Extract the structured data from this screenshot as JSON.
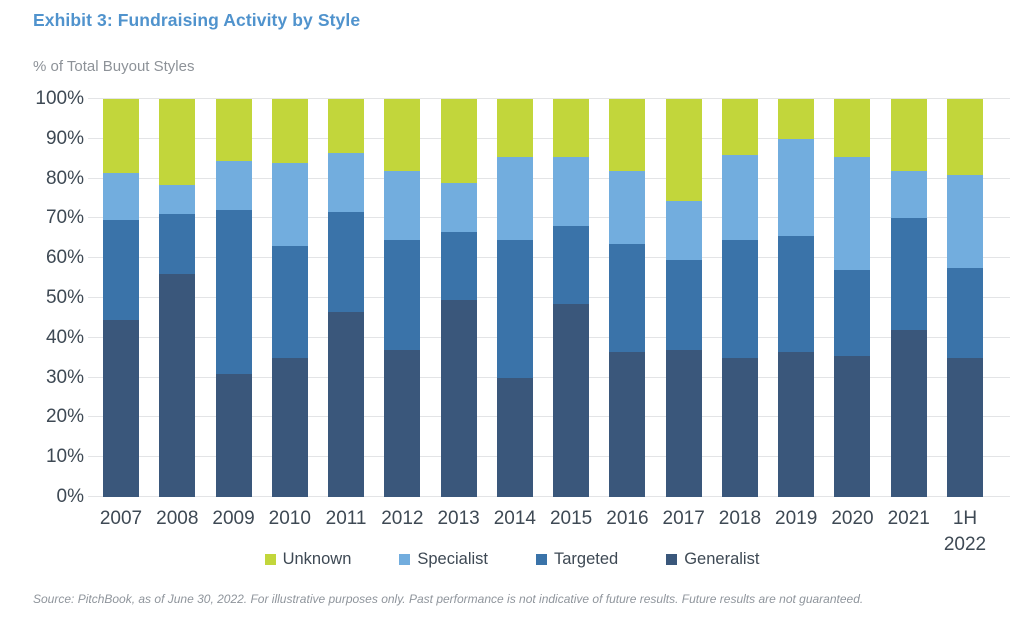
{
  "header": {
    "title": "Exhibit 3: Fundraising Activity by Style",
    "subtitle": "% of Total Buyout Styles"
  },
  "colors": {
    "title_blue": "#5093cd",
    "axis_text": "#3e4954",
    "muted_gray": "#8d9298",
    "gridline": "#e3e4e6",
    "unknown_green": "#c2d63b",
    "specialist_light_blue": "#72adde",
    "targeted_blue": "#3a73a9",
    "generalist_navy": "#3a577b"
  },
  "chart_data": {
    "type": "bar",
    "stacked": true,
    "unit": "percent",
    "title": "Exhibit 3: Fundraising Activity by Style",
    "ylabel": "% of Total Buyout Styles",
    "xlabel": "",
    "ylim": [
      0,
      100
    ],
    "grid": true,
    "legend_position": "bottom",
    "y_ticks": [
      "0%",
      "10%",
      "20%",
      "30%",
      "40%",
      "50%",
      "60%",
      "70%",
      "80%",
      "90%",
      "100%"
    ],
    "categories": [
      "2007",
      "2008",
      "2009",
      "2010",
      "2011",
      "2012",
      "2013",
      "2014",
      "2015",
      "2016",
      "2017",
      "2018",
      "2019",
      "2020",
      "2021",
      "1H\n2022"
    ],
    "series": [
      {
        "name": "Generalist",
        "color": "#3a577b",
        "values": [
          44.5,
          56.0,
          31.0,
          35.0,
          46.5,
          37.0,
          49.5,
          30.0,
          48.5,
          36.5,
          37.0,
          35.0,
          36.5,
          35.5,
          42.0,
          35.0
        ]
      },
      {
        "name": "Targeted",
        "color": "#3a73a9",
        "values": [
          25.0,
          15.0,
          41.0,
          28.0,
          25.0,
          27.5,
          17.0,
          34.5,
          19.5,
          27.0,
          22.5,
          29.5,
          29.0,
          21.5,
          28.0,
          22.5
        ]
      },
      {
        "name": "Specialist",
        "color": "#72adde",
        "values": [
          12.0,
          7.5,
          12.5,
          21.0,
          15.0,
          17.5,
          12.5,
          21.0,
          17.5,
          18.5,
          15.0,
          21.5,
          24.5,
          28.5,
          12.0,
          23.5
        ]
      },
      {
        "name": "Unknown",
        "color": "#c2d63b",
        "values": [
          18.5,
          21.5,
          15.5,
          16.0,
          13.5,
          18.0,
          21.0,
          14.5,
          14.5,
          18.0,
          25.5,
          14.0,
          10.0,
          14.5,
          18.0,
          19.0
        ]
      }
    ],
    "legend": [
      "Unknown",
      "Specialist",
      "Targeted",
      "Generalist"
    ]
  },
  "footer": {
    "source": "Source: PitchBook, as of June 30, 2022. For illustrative purposes only. Past performance is not indicative of future results. Future results are not guaranteed."
  }
}
